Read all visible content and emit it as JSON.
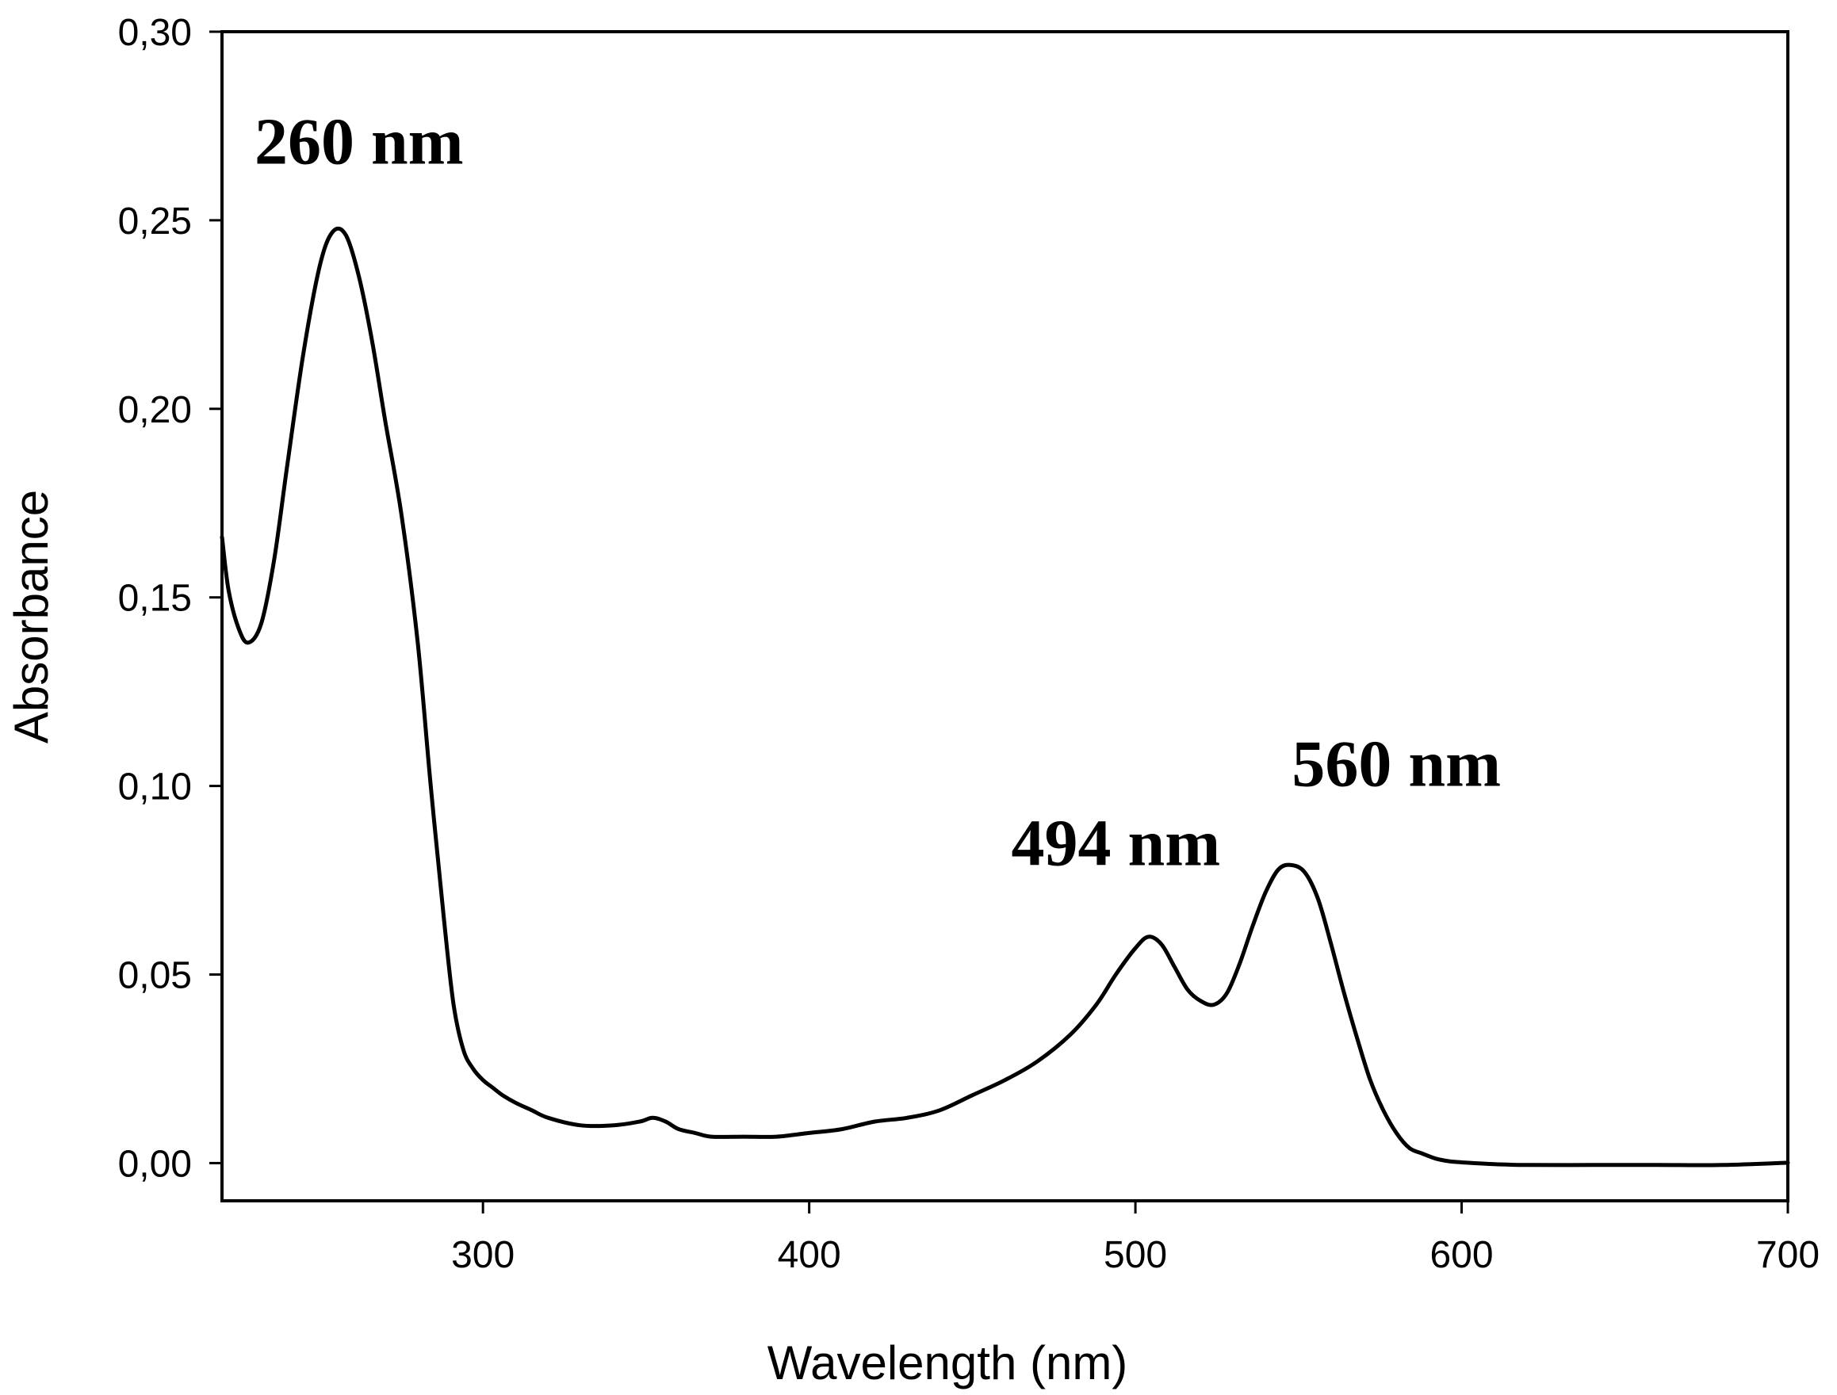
{
  "chart_data": {
    "type": "line",
    "title": "",
    "xlabel": "Wavelength (nm)",
    "ylabel": "Absorbance",
    "xlim": [
      220,
      700
    ],
    "ylim": [
      -0.01,
      0.3
    ],
    "x_ticks": [
      300,
      400,
      500,
      600,
      700
    ],
    "y_ticks": [
      0.0,
      0.05,
      0.1,
      0.15,
      0.2,
      0.25,
      0.3
    ],
    "x_tick_labels": [
      "300",
      "400",
      "500",
      "600",
      "700"
    ],
    "y_tick_labels": [
      "0,00",
      "0,05",
      "0,10",
      "0,15",
      "0,20",
      "0,25",
      "0,30"
    ],
    "grid": false,
    "legend": "none",
    "line_color": "#000000",
    "series": [
      {
        "x": [
          220,
          222,
          225,
          228,
          232,
          236,
          240,
          245,
          250,
          254,
          258,
          262,
          266,
          270,
          275,
          280,
          284,
          288,
          291,
          294,
          297,
          300,
          303,
          306,
          310,
          315,
          320,
          330,
          340,
          348,
          352,
          356,
          360,
          365,
          370,
          380,
          390,
          400,
          410,
          420,
          430,
          440,
          450,
          460,
          470,
          480,
          488,
          494,
          500,
          504,
          508,
          512,
          516,
          520,
          524,
          528,
          532,
          536,
          540,
          544,
          548,
          552,
          556,
          560,
          564,
          568,
          572,
          576,
          580,
          584,
          588,
          592,
          596,
          600,
          610,
          620,
          640,
          660,
          680,
          700
        ],
        "y": [
          0.166,
          0.152,
          0.142,
          0.138,
          0.143,
          0.16,
          0.185,
          0.215,
          0.238,
          0.247,
          0.246,
          0.235,
          0.218,
          0.197,
          0.172,
          0.138,
          0.1,
          0.065,
          0.042,
          0.03,
          0.025,
          0.022,
          0.02,
          0.018,
          0.016,
          0.014,
          0.012,
          0.01,
          0.01,
          0.011,
          0.012,
          0.011,
          0.009,
          0.008,
          0.007,
          0.007,
          0.007,
          0.008,
          0.009,
          0.011,
          0.012,
          0.014,
          0.018,
          0.022,
          0.027,
          0.034,
          0.042,
          0.05,
          0.057,
          0.06,
          0.058,
          0.052,
          0.046,
          0.043,
          0.042,
          0.045,
          0.053,
          0.063,
          0.072,
          0.078,
          0.079,
          0.077,
          0.07,
          0.058,
          0.045,
          0.033,
          0.022,
          0.014,
          0.008,
          0.004,
          0.0025,
          0.0012,
          0.0005,
          0.0002,
          -0.0003,
          -0.0005,
          -0.0005,
          -0.0005,
          -0.0005,
          0.0001
        ]
      }
    ],
    "annotations": [
      {
        "text": "260 nm",
        "x": 262,
        "y": 0.265
      },
      {
        "text": "494 nm",
        "x": 494,
        "y": 0.079
      },
      {
        "text": "560 nm",
        "x": 580,
        "y": 0.1
      }
    ]
  }
}
